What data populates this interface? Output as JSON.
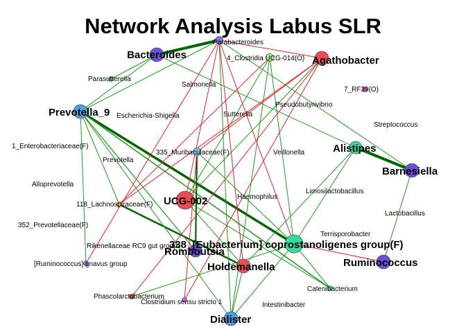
{
  "title": "Network Analysis Labus SLR",
  "palette": {
    "positive_edge": "#1a9c1a",
    "strong_edge": "#006400",
    "negative_edge": "#e8202a",
    "node_stroke": "#555555"
  },
  "nodes": [
    {
      "id": "parabacteroides",
      "label": "Parabacteroides",
      "color": "#8a6fe8",
      "size": "small"
    },
    {
      "id": "bacteroides",
      "label": "Bacteroides",
      "color": "#6b4fd8",
      "size": "large"
    },
    {
      "id": "clostridia",
      "label": "4_Clostridia UCG-014(O)",
      "color": "#a8f08a",
      "size": "small"
    },
    {
      "id": "agathobacter",
      "label": "Agathobacter",
      "color": "#ee4a52",
      "size": "large"
    },
    {
      "id": "parasutterella",
      "label": "Parasutterella",
      "color": "#3ad9a0",
      "size": "tiny"
    },
    {
      "id": "salmonella",
      "label": "Salmonella",
      "color": "#ffffff",
      "size": "none"
    },
    {
      "id": "rf39",
      "label": "7_RF39(O)",
      "color": "#f050f0",
      "size": "tiny"
    },
    {
      "id": "prevotella9",
      "label": "Prevotella_9",
      "color": "#4a9fe0",
      "size": "large"
    },
    {
      "id": "pseudobutyrivibrio",
      "label": "Pseudobutyrivibrio",
      "color": "#ffffff",
      "size": "none"
    },
    {
      "id": "escherichia",
      "label": "Escherichia-Shigella",
      "color": "#ffffff",
      "size": "none"
    },
    {
      "id": "sutterella",
      "label": "Sutterella",
      "color": "#ffffff",
      "size": "none"
    },
    {
      "id": "streptococcus",
      "label": "Streptococcus",
      "color": "#ffffff",
      "size": "none"
    },
    {
      "id": "enterobacteriaceae",
      "label": "1_Enterobacteriaceae(F)",
      "color": "#ffffff",
      "size": "none"
    },
    {
      "id": "alistipes",
      "label": "Alistipes",
      "color": "#3ad9a0",
      "size": "medium"
    },
    {
      "id": "muribaculaceae",
      "label": "335_Muribaculaceae(F)",
      "color": "#7ac8f0",
      "size": "small"
    },
    {
      "id": "veillonella",
      "label": "Veillonella",
      "color": "#ffffff",
      "size": "none"
    },
    {
      "id": "barnesiella",
      "label": "Barnesiella",
      "color": "#6b4fd8",
      "size": "large"
    },
    {
      "id": "prevotella",
      "label": "Prevotella",
      "color": "#ffffff",
      "size": "none"
    },
    {
      "id": "alloprevotella",
      "label": "Alloprevotella",
      "color": "#ffffff",
      "size": "none"
    },
    {
      "id": "limosilactobacillus",
      "label": "Limosilactobacillus",
      "color": "#ffffff",
      "size": "none"
    },
    {
      "id": "ucg002",
      "label": "UCG-002",
      "color": "#ee4a52",
      "size": "xlarge"
    },
    {
      "id": "haemophilus",
      "label": "Haemophilus",
      "color": "#ffffff",
      "size": "none"
    },
    {
      "id": "lachnospiraceae",
      "label": "118_Lachnospiraceae(F)",
      "color": "#f0c040",
      "size": "tiny"
    },
    {
      "id": "lactobacillus",
      "label": "Lactobacillus",
      "color": "#ffffff",
      "size": "none"
    },
    {
      "id": "prevotellaceae",
      "label": "352_Prevotellaceae(F)",
      "color": "#ffffff",
      "size": "none"
    },
    {
      "id": "terrisporobacter",
      "label": "Terrisporobacter",
      "color": "#ffffff",
      "size": "none"
    },
    {
      "id": "rikenellaceae",
      "label": "Rikenellaceae RC9 gut group",
      "color": "#ffffff",
      "size": "none"
    },
    {
      "id": "romboutsia",
      "label": "Romboutsia",
      "color": "#6b4fd8",
      "size": "medium"
    },
    {
      "id": "eubacterium",
      "label": "338_[Eubacterium] coprostanoligenes group(F)",
      "color": "#3ad9a0",
      "size": "xlarge"
    },
    {
      "id": "ruminococcus_gnavus",
      "label": "[Ruminococcus] gnavus group",
      "color": "#8a6fe8",
      "size": "tiny"
    },
    {
      "id": "ruminococcus",
      "label": "Ruminococcus",
      "color": "#6b4fd8",
      "size": "large"
    },
    {
      "id": "holdemanella",
      "label": "Holdemanella",
      "color": "#ee4a52",
      "size": "large"
    },
    {
      "id": "catenibacterium",
      "label": "Catenibacterium",
      "color": "#3ad9a0",
      "size": "tiny"
    },
    {
      "id": "phascolarctobacterium",
      "label": "Phascolarctobacterium",
      "color": "#ee4a52",
      "size": "tiny"
    },
    {
      "id": "clostridium_ss1",
      "label": "Clostridium sensu stricto 1",
      "color": "#f050f0",
      "size": "tiny"
    },
    {
      "id": "intestinibacter",
      "label": "Intestinibacter",
      "color": "#ffffff",
      "size": "none"
    },
    {
      "id": "dialister",
      "label": "Dialister",
      "color": "#4a9fe0",
      "size": "large"
    }
  ],
  "edges": [
    {
      "source": "bacteroides",
      "target": "parabacteroides",
      "sign": "positive",
      "weight": 4
    },
    {
      "source": "alistipes",
      "target": "barnesiella",
      "sign": "positive",
      "weight": 4
    },
    {
      "source": "prevotella9",
      "target": "eubacterium",
      "sign": "positive",
      "weight": 3.5
    },
    {
      "source": "prevotella9",
      "target": "catenibacterium",
      "sign": "positive",
      "weight": 1.5
    },
    {
      "source": "lachnospiraceae",
      "target": "holdemanella",
      "sign": "positive",
      "weight": 2.5
    },
    {
      "source": "romboutsia",
      "target": "muribaculaceae",
      "sign": "positive",
      "weight": 2.2
    },
    {
      "source": "prevotella9",
      "target": "romboutsia",
      "sign": "positive",
      "weight": 1.2
    },
    {
      "source": "prevotella9",
      "target": "dialister",
      "sign": "positive",
      "weight": 1
    },
    {
      "source": "prevotella9",
      "target": "ruminococcus_gnavus",
      "sign": "positive",
      "weight": 1
    },
    {
      "source": "prevotella9",
      "target": "lachnospiraceae",
      "sign": "positive",
      "weight": 1
    },
    {
      "source": "prevotella9",
      "target": "bacteroides",
      "sign": "positive",
      "weight": 1
    },
    {
      "source": "bacteroides",
      "target": "parasutterella",
      "sign": "positive",
      "weight": 1
    },
    {
      "source": "bacteroides",
      "target": "alistipes",
      "sign": "positive",
      "weight": 1
    },
    {
      "source": "clostridia",
      "target": "eubacterium",
      "sign": "positive",
      "weight": 1
    },
    {
      "source": "clostridia",
      "target": "dialister",
      "sign": "positive",
      "weight": 1
    },
    {
      "source": "clostridia",
      "target": "ucg002",
      "sign": "positive",
      "weight": 1
    },
    {
      "source": "agathobacter",
      "target": "ucg002",
      "sign": "positive",
      "weight": 1
    },
    {
      "source": "agathobacter",
      "target": "parabacteroides",
      "sign": "negative",
      "weight": 1
    },
    {
      "source": "agathobacter",
      "target": "phascolarctobacterium",
      "sign": "negative",
      "weight": 1
    },
    {
      "source": "agathobacter",
      "target": "clostridium_ss1",
      "sign": "negative",
      "weight": 1
    },
    {
      "source": "parabacteroides",
      "target": "holdemanella",
      "sign": "negative",
      "weight": 1
    },
    {
      "source": "parabacteroides",
      "target": "ucg002",
      "sign": "negative",
      "weight": 1
    },
    {
      "source": "parabacteroides",
      "target": "eubacterium",
      "sign": "negative",
      "weight": 1
    },
    {
      "source": "parabacteroides",
      "target": "dialister",
      "sign": "positive",
      "weight": 1
    },
    {
      "source": "parabacteroides",
      "target": "ruminococcus_gnavus",
      "sign": "negative",
      "weight": 1
    },
    {
      "source": "parabacteroides",
      "target": "barnesiella",
      "sign": "positive",
      "weight": 1
    },
    {
      "source": "parabacteroides",
      "target": "prevotella9",
      "sign": "positive",
      "weight": 1
    },
    {
      "source": "alistipes",
      "target": "holdemanella",
      "sign": "positive",
      "weight": 1
    },
    {
      "source": "alistipes",
      "target": "eubacterium",
      "sign": "positive",
      "weight": 1
    },
    {
      "source": "barnesiella",
      "target": "ruminococcus",
      "sign": "positive",
      "weight": 1
    },
    {
      "source": "ruminococcus",
      "target": "eubacterium",
      "sign": "negative",
      "weight": 1
    },
    {
      "source": "eubacterium",
      "target": "dialister",
      "sign": "positive",
      "weight": 1
    },
    {
      "source": "eubacterium",
      "target": "catenibacterium",
      "sign": "positive",
      "weight": 1
    },
    {
      "source": "eubacterium",
      "target": "muribaculaceae",
      "sign": "positive",
      "weight": 1
    },
    {
      "source": "eubacterium",
      "target": "phascolarctobacterium",
      "sign": "positive",
      "weight": 1
    },
    {
      "source": "holdemanella",
      "target": "dialister",
      "sign": "positive",
      "weight": 1
    },
    {
      "source": "ucg002",
      "target": "holdemanella",
      "sign": "positive",
      "weight": 1
    },
    {
      "source": "ucg002",
      "target": "catenibacterium",
      "sign": "positive",
      "weight": 1
    },
    {
      "source": "muribaculaceae",
      "target": "clostridium_ss1",
      "sign": "negative",
      "weight": 1
    },
    {
      "source": "muribaculaceae",
      "target": "agathobacter",
      "sign": "negative",
      "weight": 1
    },
    {
      "source": "lachnospiraceae",
      "target": "clostridia",
      "sign": "negative",
      "weight": 1
    },
    {
      "source": "lachnospiraceae",
      "target": "agathobacter",
      "sign": "negative",
      "weight": 1
    }
  ]
}
